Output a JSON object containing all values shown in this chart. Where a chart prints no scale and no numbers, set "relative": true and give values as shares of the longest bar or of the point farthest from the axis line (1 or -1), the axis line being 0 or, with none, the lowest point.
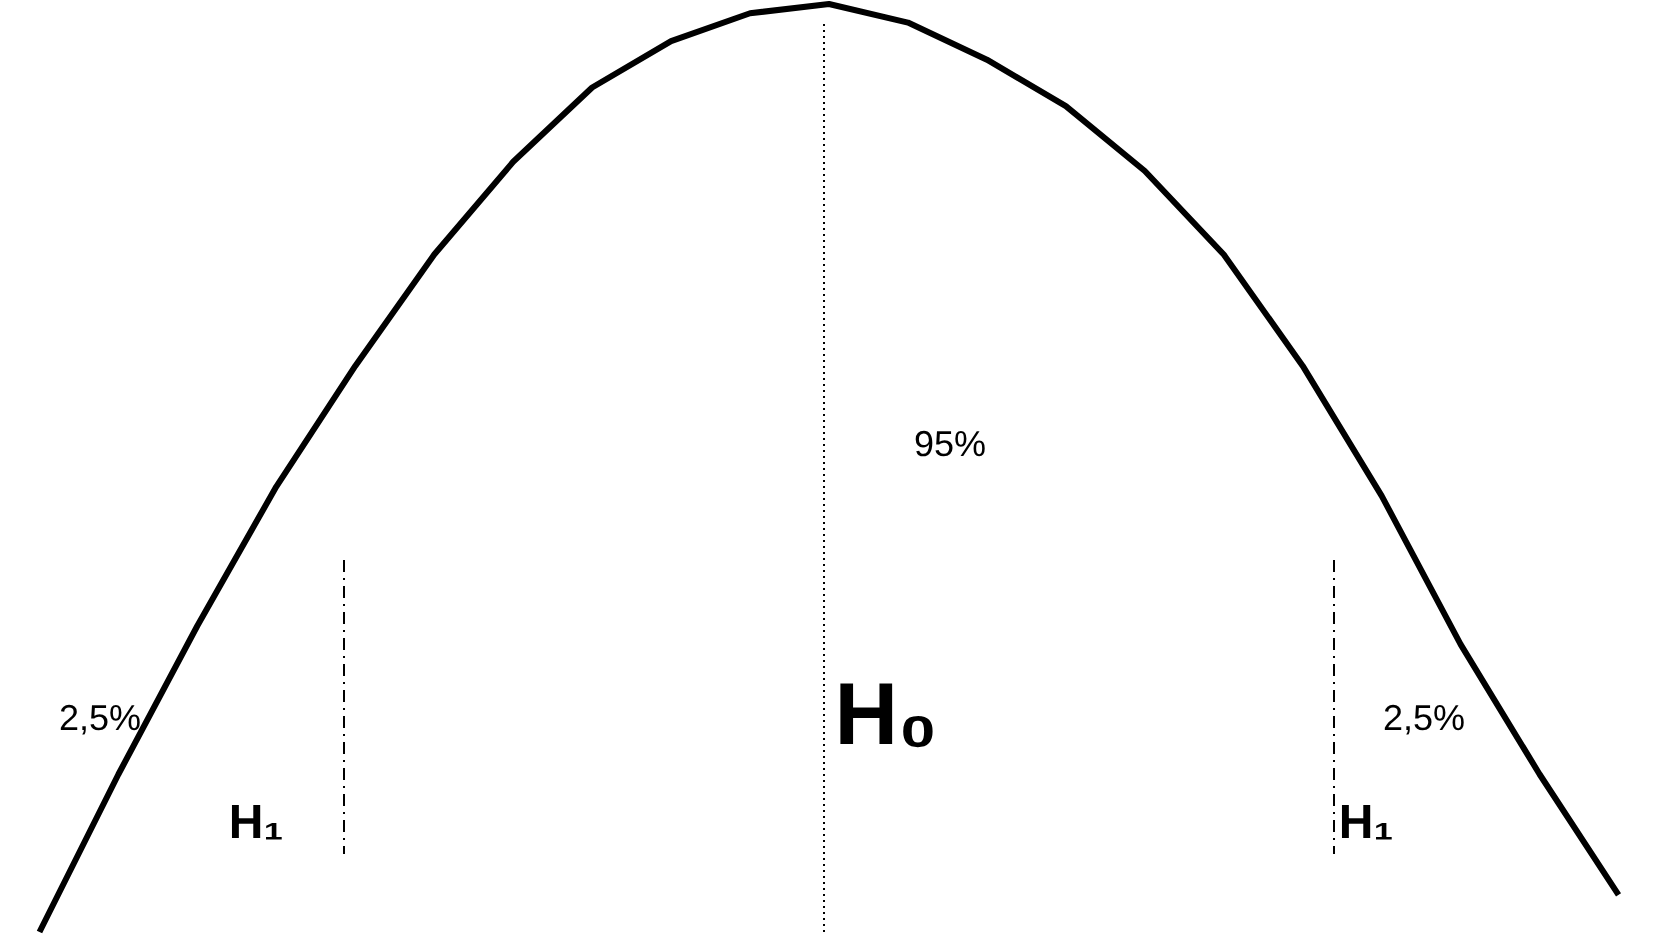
{
  "chart_data": {
    "type": "line",
    "relative": true,
    "tick_labels": false,
    "grid": false,
    "marker": "none",
    "line_style": "solid",
    "categories": [
      null,
      null,
      null,
      null,
      null,
      null,
      null,
      null,
      null,
      null,
      null,
      null,
      null,
      null,
      null,
      null,
      null,
      null,
      null,
      null,
      null
    ],
    "series": [
      {
        "color": "#000000",
        "values": [
          0,
          0.17,
          0.33,
          0.48,
          0.61,
          0.73,
          0.83,
          0.91,
          0.96,
          0.99,
          1,
          0.98,
          0.94,
          0.89,
          0.82,
          0.73,
          0.61,
          0.47,
          0.31,
          0.17,
          0.04
        ]
      }
    ],
    "annotations": [
      "2,5%",
      "95%",
      "H₀",
      "H₁",
      "H₁",
      "2,5%"
    ]
  }
}
